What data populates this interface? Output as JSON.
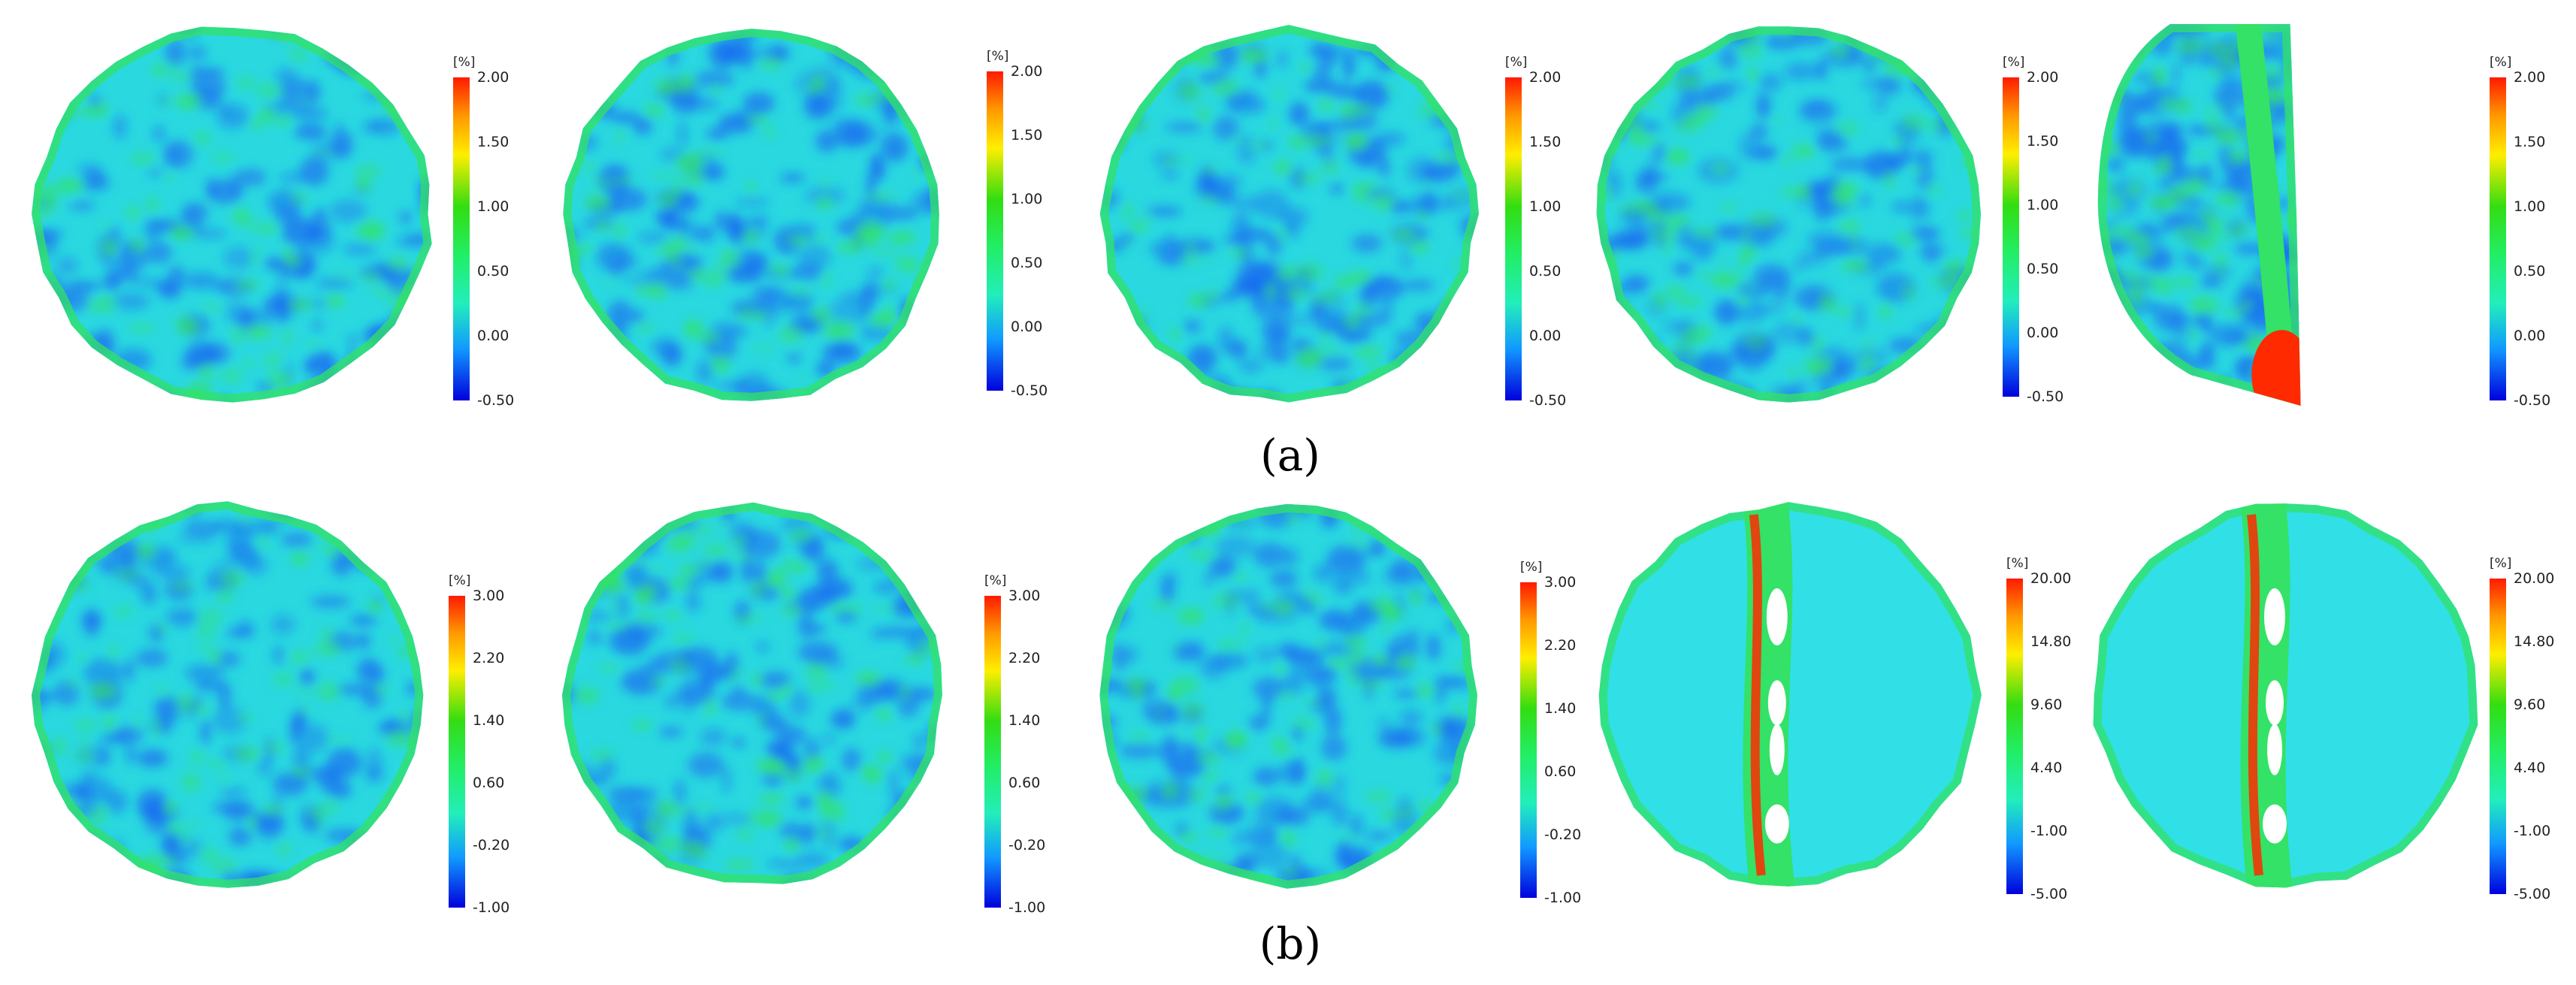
{
  "captions": {
    "a": "(a)",
    "b": "(b)"
  },
  "colorbar_unit": "[%]",
  "row_a": {
    "ticks": [
      "2.00",
      "1.50",
      "1.00",
      "0.50",
      "0.00",
      "-0.50"
    ],
    "panels": [
      "intact",
      "intact",
      "intact",
      "intact",
      "cracked-edge"
    ]
  },
  "row_b": {
    "ticks_small": [
      "3.00",
      "2.20",
      "1.40",
      "0.60",
      "-0.20",
      "-1.00"
    ],
    "ticks_large": [
      "20.00",
      "14.80",
      "9.60",
      "4.40",
      "-1.00",
      "-5.00"
    ],
    "panels": [
      "intact",
      "intact",
      "intact",
      "cracked-center",
      "cracked-center"
    ]
  },
  "colors": {
    "field_base": "#2ad8e0",
    "low": "#1a6cf0",
    "mid": "#33e266",
    "high": "#ff2a00"
  }
}
